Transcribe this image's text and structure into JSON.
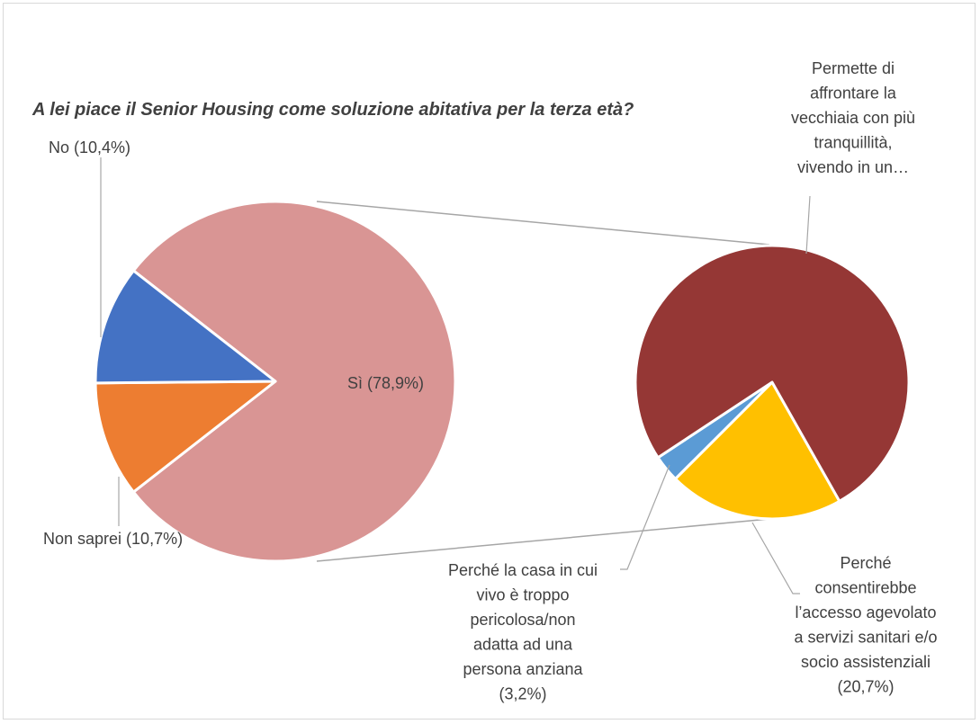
{
  "chart_data": [
    {
      "type": "pie",
      "title": "A lei piace il Senior Housing come soluzione abitativa per la terza età?",
      "slices": [
        {
          "key": "si",
          "label": "Sì (78,9%)",
          "value": 78.9,
          "color": "#d99594"
        },
        {
          "key": "no",
          "label": "No  (10,4%)",
          "value": 10.4,
          "color": "#ed7d31"
        },
        {
          "key": "non_saprei",
          "label": "Non saprei (10,7%)",
          "value": 10.7,
          "color": "#4472c4"
        }
      ]
    },
    {
      "type": "pie",
      "title": "",
      "breakdown_of": "Sì (78,9%)",
      "slices": [
        {
          "key": "tranquillita",
          "label_lines": [
            "Permette di",
            "affrontare la",
            "vecchiaia con più",
            "tranquillità,",
            "vivendo in un…"
          ],
          "value": 76.1,
          "color": "#953735"
        },
        {
          "key": "servizi",
          "label_lines": [
            "Perché",
            "consentirebbe",
            "l’accesso agevolato",
            "a servizi sanitari e/o",
            "socio assistenziali",
            "(20,7%)"
          ],
          "value": 20.7,
          "color": "#ffc000"
        },
        {
          "key": "casa",
          "label_lines": [
            "Perché la casa in cui",
            "vivo è troppo",
            "pericolosa/non",
            "adatta ad una",
            "persona anziana",
            "(3,2%)"
          ],
          "value": 3.2,
          "color": "#5b9bd5"
        }
      ]
    }
  ]
}
